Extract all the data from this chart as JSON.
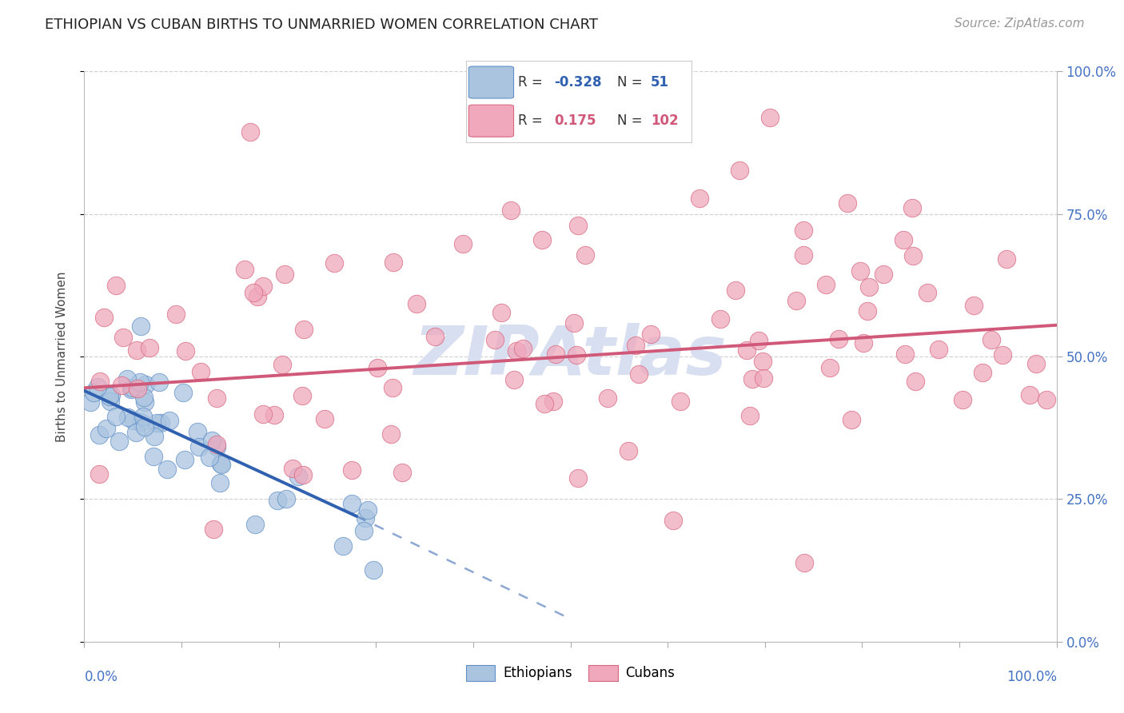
{
  "title": "ETHIOPIAN VS CUBAN BIRTHS TO UNMARRIED WOMEN CORRELATION CHART",
  "source": "Source: ZipAtlas.com",
  "ylabel": "Births to Unmarried Women",
  "ytick_vals": [
    0.0,
    25.0,
    50.0,
    75.0,
    100.0
  ],
  "xlim": [
    0.0,
    100.0
  ],
  "ylim": [
    0.0,
    100.0
  ],
  "ethiopian_face_color": "#aac4e0",
  "cuban_face_color": "#f0a8bc",
  "eth_edge_color": "#6090c8",
  "cub_edge_color": "#d86880",
  "eth_trend_color": "#3060b0",
  "cub_trend_color": "#d05878",
  "grid_color": "#cccccc",
  "background_color": "#ffffff",
  "axis_label_color": "#4472c4",
  "ylabel_color": "#444444",
  "title_color": "#222222",
  "source_color": "#999999",
  "watermark_color": "#d8dff0",
  "eth_trend_start_x": 0.0,
  "eth_trend_start_y": 44.0,
  "eth_trend_end_solid_x": 28.0,
  "eth_trend_end_solid_y": 22.0,
  "eth_trend_end_dash_x": 50.0,
  "eth_trend_end_dash_y": 4.0,
  "cub_trend_start_x": 0.0,
  "cub_trend_start_y": 44.5,
  "cub_trend_end_x": 100.0,
  "cub_trend_end_y": 55.5,
  "eth_seed": 17,
  "cub_seed": 22
}
